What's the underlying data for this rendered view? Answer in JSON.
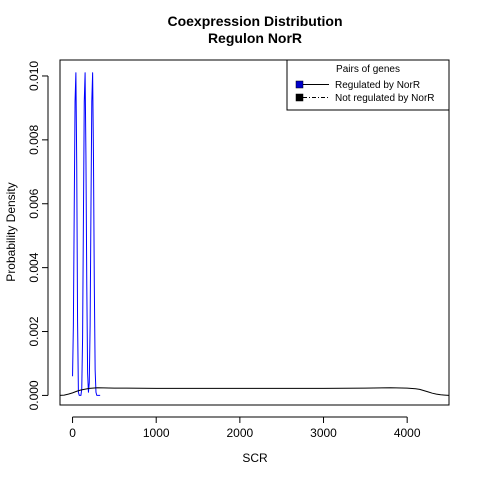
{
  "chart_data": {
    "type": "line",
    "title": "Coexpression Distribution",
    "subtitle": "Regulon NorR",
    "xlabel": "SCR",
    "ylabel": "Probability Density",
    "xlim": [
      -150,
      4500
    ],
    "ylim": [
      -0.0003,
      0.0105
    ],
    "x_ticks": [
      0,
      1000,
      2000,
      3000,
      4000
    ],
    "x_tick_labels": [
      "0",
      "1000",
      "2000",
      "3000",
      "4000"
    ],
    "y_ticks": [
      0,
      0.002,
      0.004,
      0.006,
      0.008,
      0.01
    ],
    "y_tick_labels": [
      "0.000",
      "0.002",
      "0.004",
      "0.006",
      "0.008",
      "0.010"
    ],
    "grid": false,
    "legend": {
      "title": "Pairs of genes",
      "placement": "top-right",
      "entries": [
        "Regulated by  NorR",
        "Not regulated by  NorR"
      ]
    },
    "series": [
      {
        "name": "Regulated by  NorR",
        "color": "#0000ff",
        "line_style": "solid",
        "x": [
          0,
          10,
          20,
          30,
          40,
          50,
          60,
          70,
          80,
          90,
          100,
          110,
          120,
          130,
          140,
          150,
          160,
          170,
          180,
          190,
          200,
          210,
          220,
          230,
          240,
          250,
          260,
          270,
          280,
          290,
          300,
          310,
          320,
          330
        ],
        "y": [
          0.0006,
          0.0022,
          0.0058,
          0.0092,
          0.0101,
          0.0072,
          0.0023,
          0.0001,
          0.0,
          0.0,
          0.0,
          0.0002,
          0.0018,
          0.0055,
          0.0092,
          0.0101,
          0.0075,
          0.0035,
          0.0007,
          0.0001,
          0.0004,
          0.0022,
          0.0058,
          0.0092,
          0.0101,
          0.0075,
          0.0035,
          0.0008,
          0.0001,
          0.0,
          0.0,
          0.0,
          0.0,
          0.0
        ]
      },
      {
        "name": "Not regulated by  NorR",
        "color": "#000000",
        "line_style": "solid",
        "x": [
          -150,
          -100,
          -50,
          0,
          50,
          100,
          200,
          300,
          500,
          1000,
          1500,
          2000,
          2500,
          3000,
          3500,
          3800,
          4000,
          4100,
          4150,
          4200,
          4250,
          4300,
          4350,
          4400,
          4450,
          4500
        ],
        "y": [
          0.0,
          1e-05,
          4e-05,
          8e-05,
          0.00013,
          0.00017,
          0.00022,
          0.00024,
          0.00023,
          0.00022,
          0.00022,
          0.00022,
          0.00022,
          0.00022,
          0.00023,
          0.00024,
          0.00023,
          0.00021,
          0.00019,
          0.00015,
          0.00011,
          7e-05,
          4e-05,
          2e-05,
          1e-05,
          0.0
        ]
      }
    ]
  }
}
